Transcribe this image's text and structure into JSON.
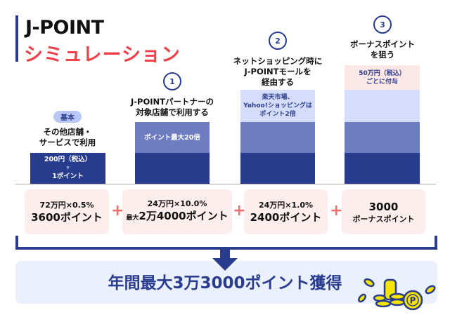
{
  "title": {
    "line1": "J-POINT",
    "line2": "シミュレーション"
  },
  "steps": [
    {
      "badge": "基本",
      "heading": [
        "その他店舗・",
        "サービスで利用"
      ],
      "bar_text": [
        "200円（税込）",
        "1ポイント"
      ]
    },
    {
      "number": "1",
      "heading": [
        "J-POINTパートナーの",
        "対象店舗で利用する"
      ],
      "bar_text": "ポイント最大20倍"
    },
    {
      "number": "2",
      "heading": [
        "ネットショッピング時に",
        "J-POINTモールを",
        "経由する"
      ],
      "bar_text": [
        "楽天市場、",
        "Yahoo!ショッピングは",
        "ポイント2倍"
      ]
    },
    {
      "number": "3",
      "heading": [
        "ボーナスポイント",
        "を狙う"
      ],
      "bar_text": [
        "50万円（税込）",
        "ごとに付与"
      ]
    }
  ],
  "calc": [
    {
      "formula": "72万円×0.5%",
      "result": "3600ポイント"
    },
    {
      "formula": "24万円×10.0%",
      "prefix": "最大",
      "result": "2万4000ポイント"
    },
    {
      "formula": "24万円×1.0%",
      "result": "2400ポイント"
    },
    {
      "formula": "3000",
      "result": "ボーナスポイント"
    }
  ],
  "plus": "+",
  "total": "年間最大3万3000ポイント獲得",
  "colors": {
    "navy": "#283c8e",
    "mid": "#6d7dbf",
    "light": "#d5ddfa",
    "pink": "#fde8e8",
    "red": "#f0404a",
    "coin": "#f5e400"
  }
}
